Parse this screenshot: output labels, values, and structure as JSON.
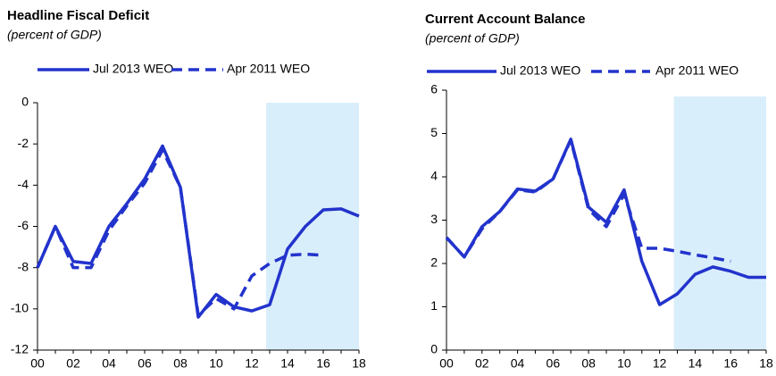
{
  "chart_data": [
    {
      "type": "line",
      "title": "Headline Fiscal Deficit",
      "subtitle": "(percent of GDP)",
      "categories": [
        "00",
        null,
        "02",
        null,
        "04",
        null,
        "06",
        null,
        "08",
        null,
        "10",
        null,
        "12",
        null,
        "14",
        null,
        "16",
        null,
        "18"
      ],
      "series": [
        {
          "name": "Jul 2013 WEO",
          "color": "#2233cc",
          "style": "solid",
          "values": [
            -8,
            -6,
            -7.7,
            -7.8,
            -6,
            -4.9,
            -3.7,
            -2.1,
            -4.1,
            -10.4,
            -9.3,
            -9.9,
            -10.1,
            -9.8,
            -7.1,
            -6,
            -5.2,
            -5.15,
            -5.5
          ]
        },
        {
          "name": "Apr 2011 WEO",
          "color": "#2233cc",
          "style": "dashed",
          "values": [
            -8,
            -6,
            -8,
            -8,
            -6.2,
            -5,
            -3.9,
            -2.3,
            -4.1,
            -10.3,
            -9.5,
            -10,
            -8.4,
            -7.8,
            -7.4,
            -7.35,
            -7.4,
            null,
            null
          ]
        }
      ],
      "ylim": [
        -12,
        0
      ],
      "yticks": [
        -12,
        -10,
        -8,
        -6,
        -4,
        -2,
        0
      ]
    },
    {
      "type": "line",
      "title": "Current Account Balance",
      "subtitle": "(percent of GDP)",
      "categories": [
        "00",
        null,
        "02",
        null,
        "04",
        null,
        "06",
        null,
        "08",
        null,
        "10",
        null,
        "12",
        null,
        "14",
        null,
        "16",
        null,
        "18"
      ],
      "series": [
        {
          "name": "Jul 2013 WEO",
          "color": "#2233cc",
          "style": "solid",
          "values": [
            2.6,
            2.15,
            2.85,
            3.2,
            3.72,
            3.67,
            3.95,
            4.87,
            3.3,
            2.95,
            3.7,
            2.05,
            1.05,
            1.3,
            1.75,
            1.92,
            1.82,
            1.68,
            1.68
          ]
        },
        {
          "name": "Apr 2011 WEO",
          "color": "#2233cc",
          "style": "dashed",
          "values": [
            2.6,
            2.15,
            2.8,
            3.2,
            3.7,
            3.65,
            3.95,
            4.85,
            3.25,
            2.85,
            3.6,
            2.35,
            2.35,
            2.28,
            2.2,
            2.13,
            2.05,
            null,
            null
          ]
        }
      ],
      "ylim": [
        0,
        6
      ],
      "yticks": [
        0,
        1,
        2,
        3,
        4,
        5,
        6
      ]
    }
  ]
}
